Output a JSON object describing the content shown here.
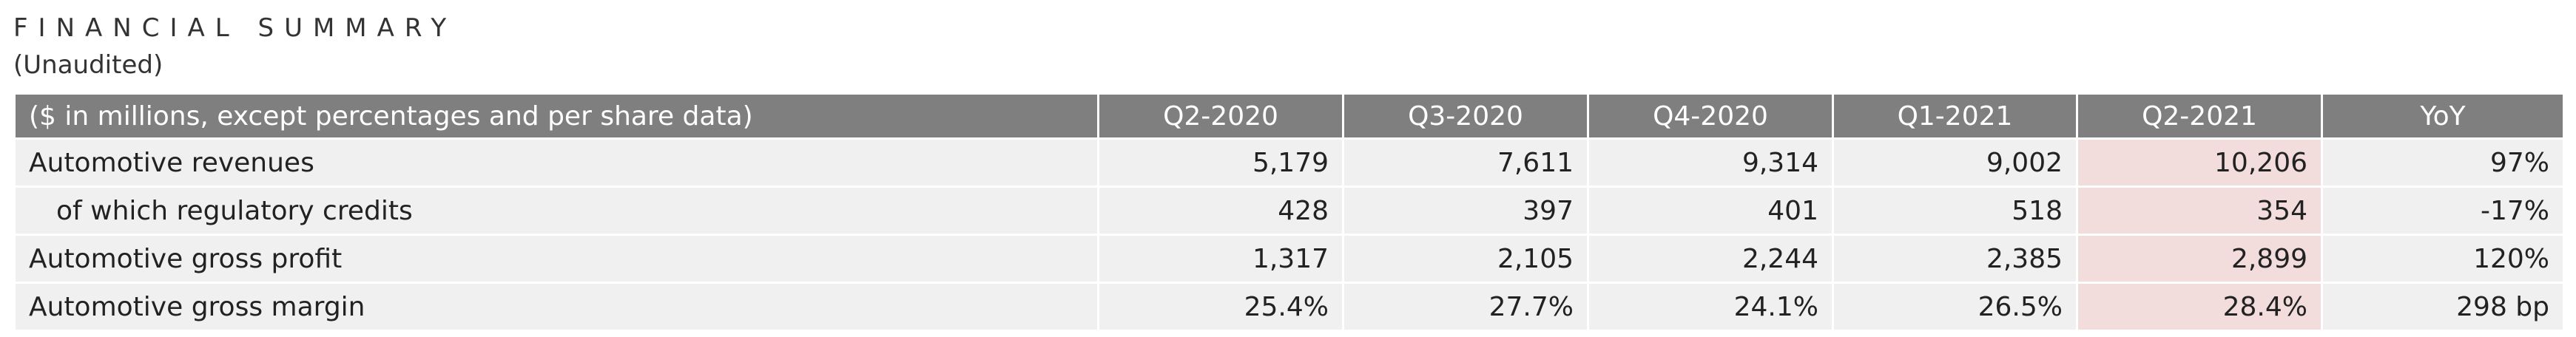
{
  "header": {
    "title": "FINANCIAL SUMMARY",
    "subtitle": "(Unaudited)"
  },
  "table": {
    "columns": [
      "($ in millions, except percentages and per share data)",
      "Q2-2020",
      "Q3-2020",
      "Q4-2020",
      "Q1-2021",
      "Q2-2021",
      "YoY"
    ],
    "rows": [
      [
        "Automotive revenues",
        "5,179",
        "7,611",
        "9,314",
        "9,002",
        "10,206",
        "97%"
      ],
      [
        "of which regulatory credits",
        "428",
        "397",
        "401",
        "518",
        "354",
        "-17%"
      ],
      [
        "Automotive gross profit",
        "1,317",
        "2,105",
        "2,244",
        "2,385",
        "2,899",
        "120%"
      ],
      [
        "Automotive gross margin",
        "25.4%",
        "27.7%",
        "24.1%",
        "26.5%",
        "28.4%",
        "298 bp"
      ]
    ]
  }
}
